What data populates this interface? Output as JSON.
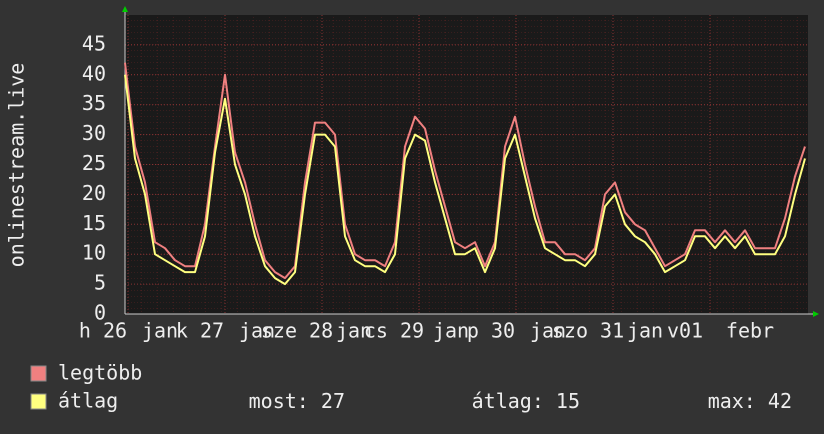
{
  "chart_data": {
    "type": "line",
    "ylabel": "onlinestream.live",
    "ylim": [
      0,
      50
    ],
    "yticks": [
      0,
      5,
      10,
      15,
      20,
      25,
      30,
      35,
      40,
      45
    ],
    "grid": true,
    "day_labels": [
      "h 26",
      "k 27",
      "sze 28",
      "cs 29",
      "p 30",
      "szo 31",
      "v01"
    ],
    "month_labels": [
      "jan",
      "jan",
      "jan",
      "jan",
      "jan",
      "jan",
      "febr"
    ],
    "series": [
      {
        "name": "legtöbb",
        "color": "#f08080",
        "values": [
          42,
          28,
          22,
          12,
          11,
          9,
          8,
          8,
          15,
          28,
          40,
          27,
          22,
          15,
          9,
          7,
          6,
          8,
          22,
          32,
          32,
          30,
          15,
          10,
          9,
          9,
          8,
          12,
          28,
          33,
          31,
          24,
          18,
          12,
          11,
          12,
          8,
          12,
          28,
          33,
          25,
          18,
          12,
          12,
          10,
          10,
          9,
          11,
          20,
          22,
          17,
          15,
          14,
          11,
          8,
          9,
          10,
          14,
          14,
          12,
          14,
          12,
          14,
          11,
          11,
          11,
          16,
          23,
          28
        ]
      },
      {
        "name": "átlag",
        "color": "#ffff80",
        "values": [
          40,
          26,
          20,
          10,
          9,
          8,
          7,
          7,
          13,
          27,
          36,
          25,
          20,
          13,
          8,
          6,
          5,
          7,
          20,
          30,
          30,
          28,
          13,
          9,
          8,
          8,
          7,
          10,
          26,
          30,
          29,
          22,
          16,
          10,
          10,
          11,
          7,
          11,
          26,
          30,
          23,
          16,
          11,
          10,
          9,
          9,
          8,
          10,
          18,
          20,
          15,
          13,
          12,
          10,
          7,
          8,
          9,
          13,
          13,
          11,
          13,
          11,
          13,
          10,
          10,
          10,
          13,
          20,
          26
        ]
      }
    ],
    "stats": [
      {
        "label": "most:",
        "value": 27
      },
      {
        "label": "átlag:",
        "value": 15
      },
      {
        "label": "max:",
        "value": 42
      }
    ]
  }
}
